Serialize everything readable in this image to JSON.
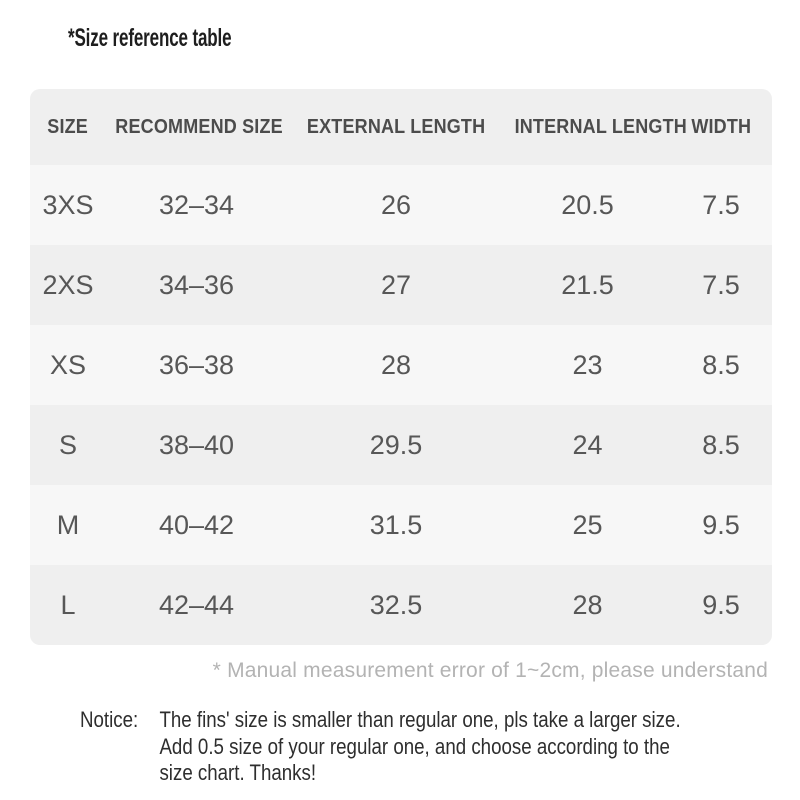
{
  "title": "*Size reference table",
  "table": {
    "columns": [
      "SIZE",
      "RECOMMEND SIZE",
      "EXTERNAL LENGTH",
      "INTERNAL LENGTH",
      "WIDTH"
    ],
    "rows": [
      {
        "size": "3XS",
        "recommend": "32–34",
        "external": "26",
        "internal": "20.5",
        "width": "7.5"
      },
      {
        "size": "2XS",
        "recommend": "34–36",
        "external": "27",
        "internal": "21.5",
        "width": "7.5"
      },
      {
        "size": "XS",
        "recommend": "36–38",
        "external": "28",
        "internal": "23",
        "width": "8.5"
      },
      {
        "size": "S",
        "recommend": "38–40",
        "external": "29.5",
        "internal": "24",
        "width": "8.5"
      },
      {
        "size": "M",
        "recommend": "40–42",
        "external": "31.5",
        "internal": "25",
        "width": "9.5"
      },
      {
        "size": "L",
        "recommend": "42–44",
        "external": "32.5",
        "internal": "28",
        "width": "9.5"
      }
    ],
    "colors": {
      "band_dark": "#efefef",
      "band_light": "#f7f7f7",
      "header_text": "#4c4c4c",
      "cell_text": "#575757"
    }
  },
  "footnote": "* Manual measurement error of 1~2cm, please understand",
  "notice": {
    "label": "Notice:",
    "lines": [
      "The fins' size is smaller than regular one, pls take a larger size.",
      "Add 0.5 size of your regular one, and choose according to the",
      "size chart. Thanks!"
    ]
  }
}
